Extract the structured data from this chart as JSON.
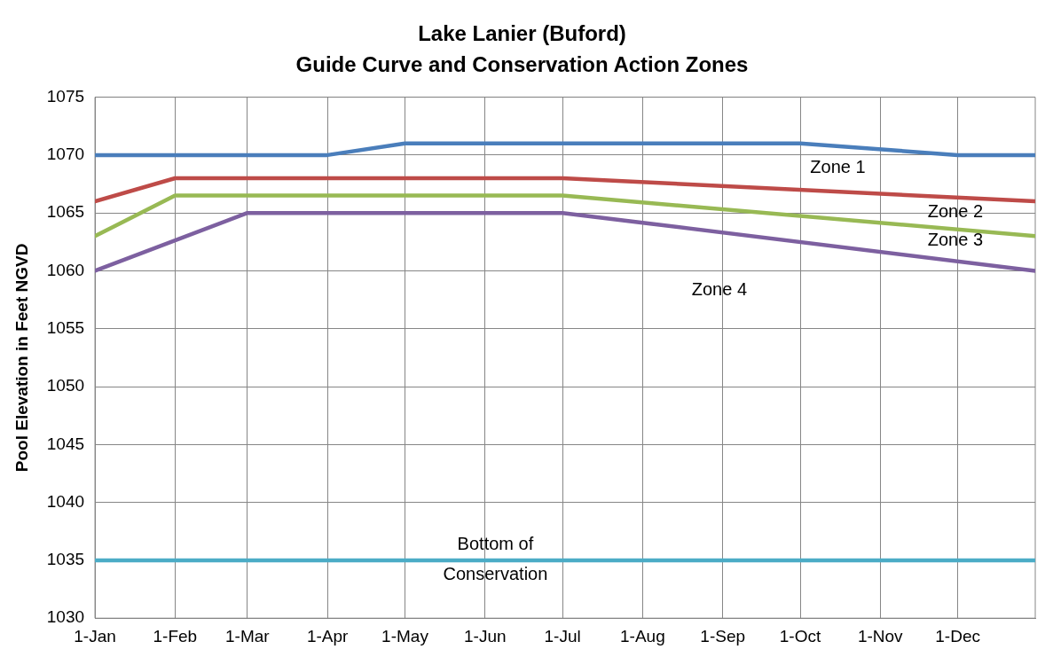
{
  "chart_data": {
    "type": "line",
    "title": "Lake Lanier (Buford)\nGuide Curve and Conservation Action Zones",
    "ylabel": "Pool Elevation in Feet NGVD",
    "x": [
      "--01-01",
      "--02-01",
      "--03-01",
      "--04-01",
      "--05-01",
      "--07-01",
      "--10-01",
      "--12-01",
      "--12-31"
    ],
    "series": [
      {
        "color": "#4a7ebb",
        "values": [
          1070,
          1070,
          1070,
          1070,
          1071,
          1071,
          1071,
          1070,
          1070
        ]
      },
      {
        "color": "#be4b48",
        "x": [
          "--01-01",
          "--02-01",
          "--07-01",
          "--12-31"
        ],
        "values": [
          1066,
          1068,
          1068,
          1066
        ]
      },
      {
        "color": "#98b954",
        "x": [
          "--01-01",
          "--02-01",
          "--07-01",
          "--12-31"
        ],
        "values": [
          1063,
          1066.5,
          1066.5,
          1063
        ]
      },
      {
        "color": "#7d60a0",
        "x": [
          "--01-01",
          "--03-01",
          "--07-01",
          "--12-31"
        ],
        "values": [
          1060,
          1065,
          1065,
          1060
        ]
      },
      {
        "color": "#4bacc6",
        "x": [
          "--01-01",
          "--12-31"
        ],
        "values": [
          1035,
          1035
        ]
      }
    ],
    "xlim": [
      "--01-01",
      "--12-31"
    ],
    "xticks": [
      {
        "value": "--01-01",
        "label": "1-Jan"
      },
      {
        "value": "--02-01",
        "label": "1-Feb"
      },
      {
        "value": "--03-01",
        "label": "1-Mar"
      },
      {
        "value": "--04-01",
        "label": "1-Apr"
      },
      {
        "value": "--05-01",
        "label": "1-May"
      },
      {
        "value": "--06-01",
        "label": "1-Jun"
      },
      {
        "value": "--07-01",
        "label": "1-Jul"
      },
      {
        "value": "--08-01",
        "label": "1-Aug"
      },
      {
        "value": "--09-01",
        "label": "1-Sep"
      },
      {
        "value": "--10-01",
        "label": "1-Oct"
      },
      {
        "value": "--11-01",
        "label": "1-Nov"
      },
      {
        "value": "--12-01",
        "label": "1-Dec"
      }
    ],
    "ylim": [
      1030,
      1075
    ],
    "yticks": [
      1030,
      1035,
      1040,
      1045,
      1050,
      1055,
      1060,
      1065,
      1070,
      1075
    ],
    "grid": true,
    "legend": false,
    "marker": "none",
    "line_style": "solid",
    "annotations": [
      "Zone 1",
      "Zone 2",
      "Zone 3",
      "Zone 4",
      {
        "text": "Bottom of\nConservation",
        "x": "--06-05",
        "y": 1035
      }
    ]
  }
}
